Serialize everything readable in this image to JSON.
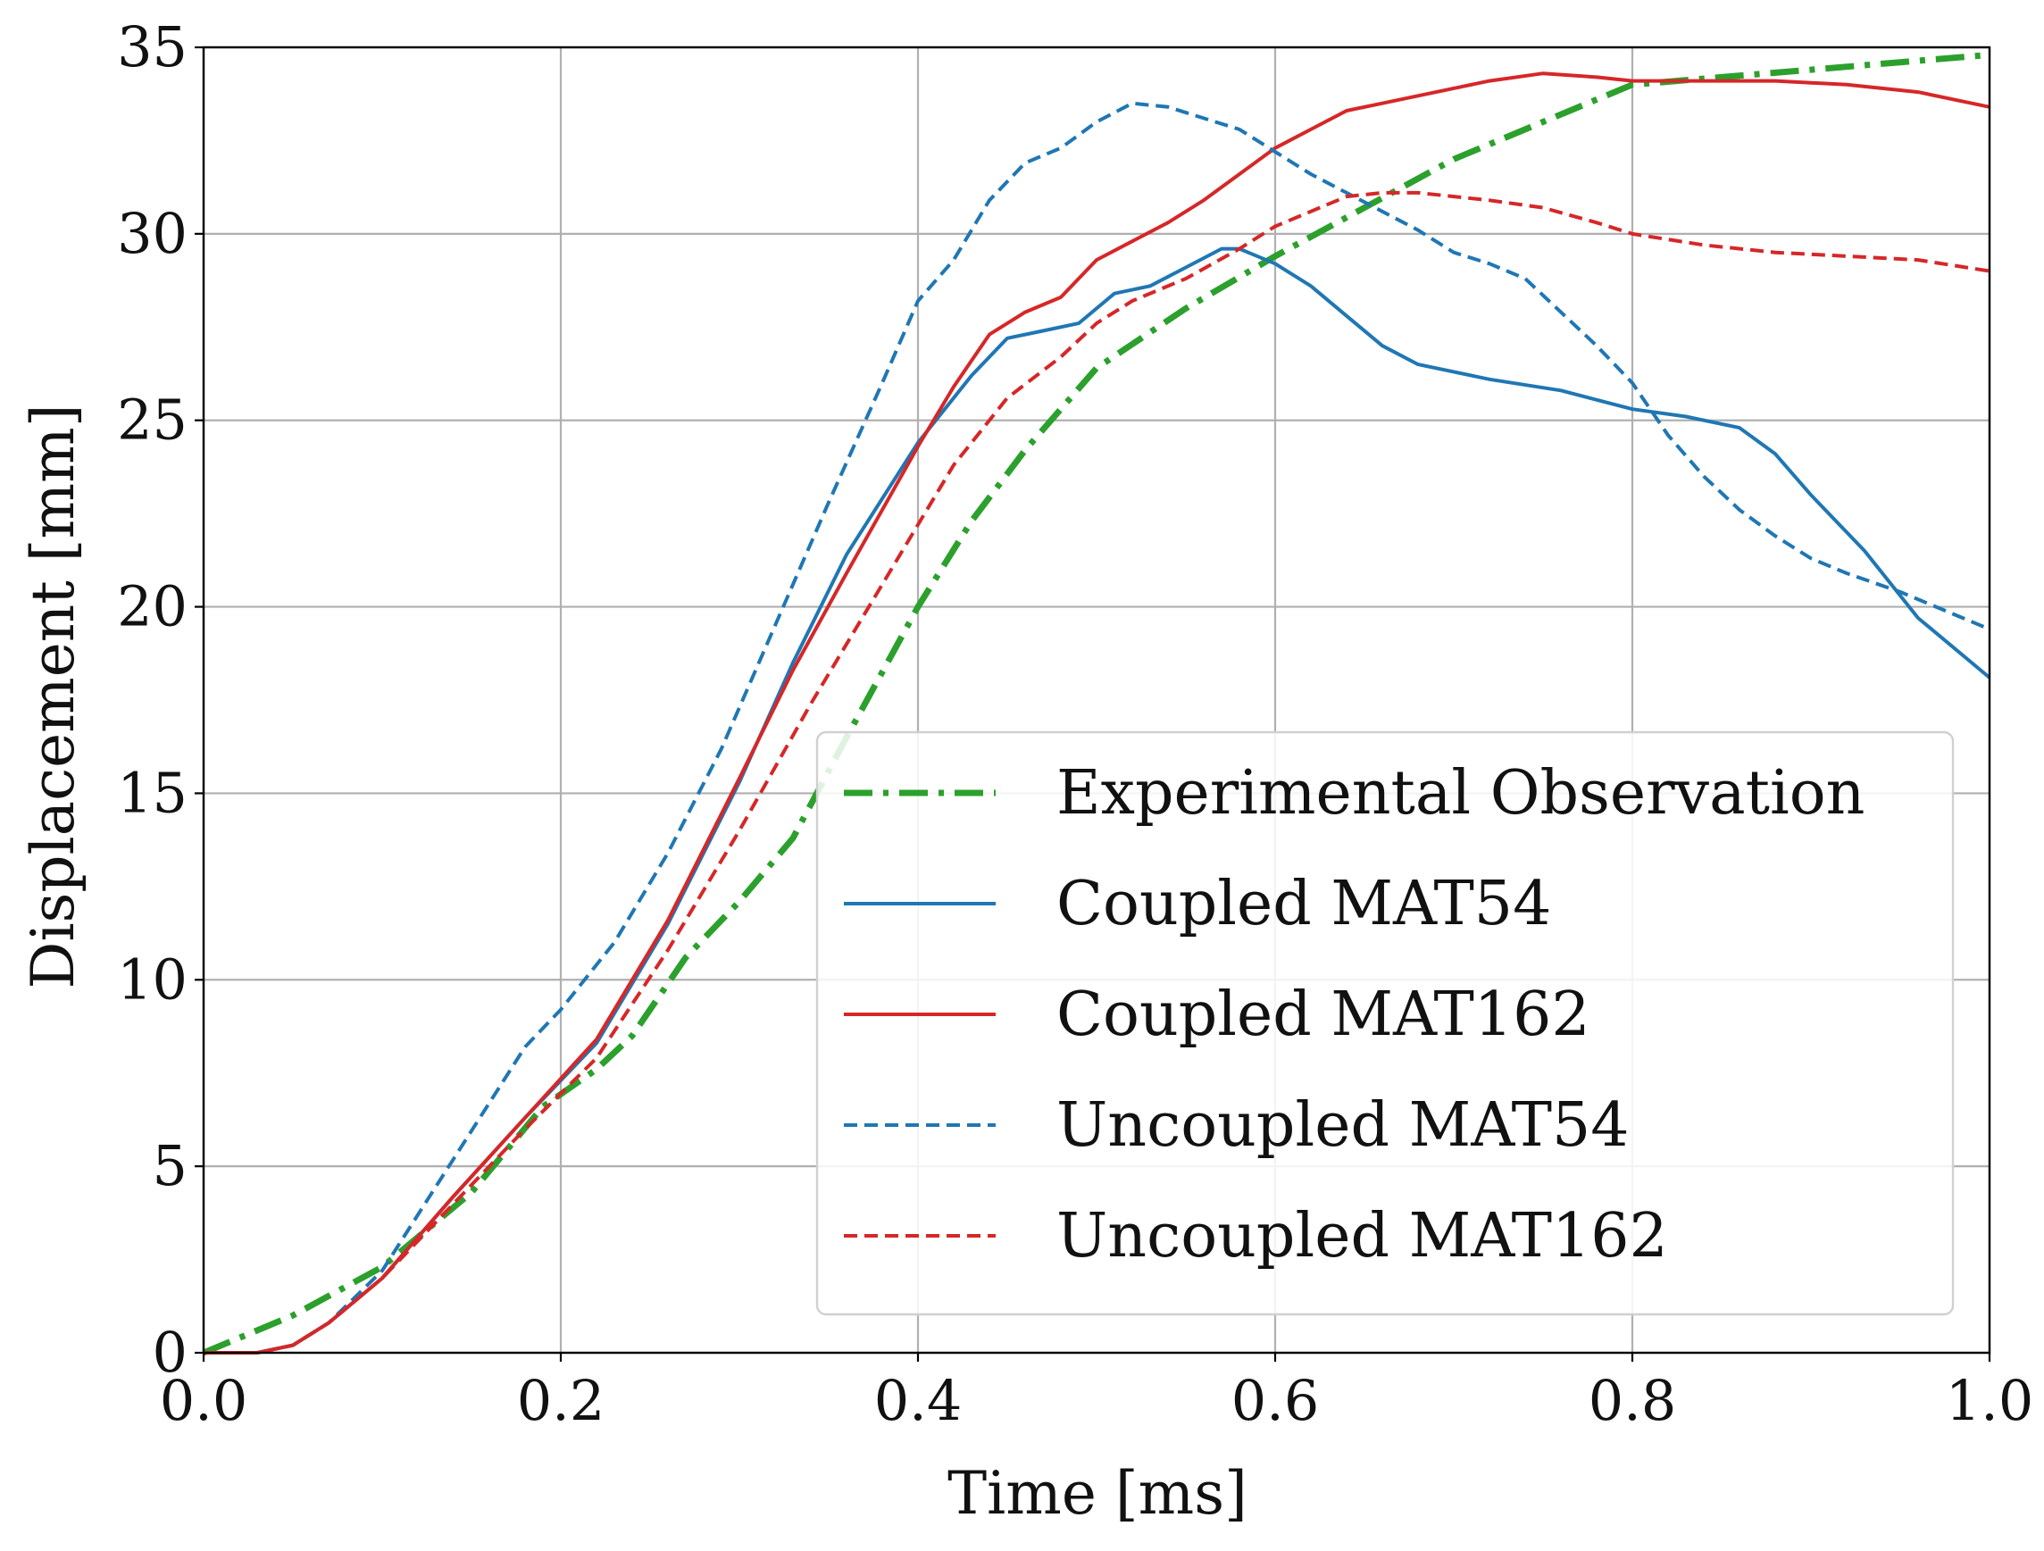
{
  "chart_data": {
    "type": "line",
    "title": "",
    "xlabel": "Time [ms]",
    "ylabel": "Displacement [mm]",
    "xlim": [
      0.0,
      1.0
    ],
    "ylim": [
      0,
      35
    ],
    "grid": true,
    "legend_position": "lower-right",
    "xticks": [
      0.0,
      0.2,
      0.4,
      0.6,
      0.8,
      1.0
    ],
    "xtick_labels": [
      "0.0",
      "0.2",
      "0.4",
      "0.6",
      "0.8",
      "1.0"
    ],
    "yticks": [
      0,
      5,
      10,
      15,
      20,
      25,
      30,
      35
    ],
    "ytick_labels": [
      "0",
      "5",
      "10",
      "15",
      "20",
      "25",
      "30",
      "35"
    ],
    "series": [
      {
        "name": "Experimental Observation",
        "color": "#2ca02c",
        "style": "dashdot",
        "x": [
          0.0,
          0.05,
          0.1,
          0.15,
          0.19,
          0.22,
          0.24,
          0.27,
          0.3,
          0.33,
          0.36,
          0.4,
          0.43,
          0.46,
          0.5,
          0.55,
          0.6,
          0.65,
          0.7,
          0.75,
          0.8,
          0.85,
          0.9,
          0.95,
          1.0
        ],
        "values": [
          0.0,
          1.0,
          2.3,
          4.3,
          6.6,
          7.6,
          8.5,
          10.6,
          12.1,
          13.8,
          16.5,
          20.0,
          22.3,
          24.2,
          26.4,
          28.0,
          29.4,
          30.7,
          32.0,
          33.0,
          34.0,
          34.2,
          34.4,
          34.6,
          34.8
        ]
      },
      {
        "name": "Coupled MAT54",
        "color": "#1f77b4",
        "style": "solid",
        "x": [
          0.0,
          0.03,
          0.05,
          0.07,
          0.1,
          0.14,
          0.18,
          0.22,
          0.26,
          0.3,
          0.33,
          0.36,
          0.4,
          0.43,
          0.45,
          0.47,
          0.49,
          0.51,
          0.53,
          0.55,
          0.57,
          0.58,
          0.6,
          0.62,
          0.64,
          0.66,
          0.68,
          0.72,
          0.76,
          0.8,
          0.83,
          0.86,
          0.88,
          0.9,
          0.93,
          0.96,
          1.0
        ],
        "values": [
          0.0,
          0.0,
          0.2,
          0.8,
          2.0,
          4.2,
          6.3,
          8.3,
          11.5,
          15.3,
          18.5,
          21.4,
          24.4,
          26.2,
          27.2,
          27.4,
          27.6,
          28.4,
          28.6,
          29.1,
          29.6,
          29.6,
          29.2,
          28.6,
          27.8,
          27.0,
          26.5,
          26.1,
          25.8,
          25.3,
          25.1,
          24.8,
          24.1,
          23.0,
          21.5,
          19.7,
          18.1
        ]
      },
      {
        "name": "Coupled MAT162",
        "color": "#d62728",
        "style": "solid",
        "x": [
          0.0,
          0.03,
          0.05,
          0.07,
          0.1,
          0.14,
          0.18,
          0.22,
          0.26,
          0.3,
          0.33,
          0.36,
          0.4,
          0.42,
          0.44,
          0.46,
          0.48,
          0.5,
          0.52,
          0.54,
          0.56,
          0.58,
          0.6,
          0.62,
          0.64,
          0.66,
          0.68,
          0.7,
          0.72,
          0.75,
          0.78,
          0.8,
          0.82,
          0.85,
          0.88,
          0.92,
          0.96,
          1.0
        ],
        "values": [
          0.0,
          0.0,
          0.2,
          0.8,
          2.0,
          4.2,
          6.3,
          8.4,
          11.6,
          15.4,
          18.3,
          20.9,
          24.3,
          25.9,
          27.3,
          27.9,
          28.3,
          29.3,
          29.8,
          30.3,
          30.9,
          31.6,
          32.3,
          32.8,
          33.3,
          33.5,
          33.7,
          33.9,
          34.1,
          34.3,
          34.2,
          34.1,
          34.1,
          34.1,
          34.1,
          34.0,
          33.8,
          33.4
        ]
      },
      {
        "name": "Uncoupled MAT54",
        "color": "#1f77b4",
        "style": "dashed",
        "x": [
          0.0,
          0.03,
          0.05,
          0.07,
          0.1,
          0.14,
          0.18,
          0.2,
          0.23,
          0.26,
          0.29,
          0.32,
          0.35,
          0.38,
          0.4,
          0.42,
          0.44,
          0.46,
          0.48,
          0.5,
          0.52,
          0.54,
          0.56,
          0.58,
          0.6,
          0.62,
          0.64,
          0.66,
          0.68,
          0.7,
          0.72,
          0.74,
          0.76,
          0.78,
          0.8,
          0.82,
          0.84,
          0.86,
          0.88,
          0.9,
          0.92,
          0.95,
          1.0
        ],
        "values": [
          0.0,
          0.0,
          0.2,
          0.8,
          2.2,
          5.2,
          8.2,
          9.2,
          11.0,
          13.4,
          16.2,
          19.5,
          22.8,
          26.0,
          28.2,
          29.3,
          30.9,
          31.9,
          32.3,
          33.0,
          33.5,
          33.4,
          33.1,
          32.8,
          32.2,
          31.6,
          31.1,
          30.6,
          30.1,
          29.5,
          29.2,
          28.8,
          27.9,
          27.0,
          26.0,
          24.6,
          23.5,
          22.6,
          21.9,
          21.3,
          20.9,
          20.4,
          19.4
        ]
      },
      {
        "name": "Uncoupled MAT162",
        "color": "#d62728",
        "style": "dashed",
        "x": [
          0.0,
          0.03,
          0.05,
          0.07,
          0.1,
          0.14,
          0.18,
          0.22,
          0.26,
          0.3,
          0.34,
          0.38,
          0.42,
          0.45,
          0.48,
          0.5,
          0.52,
          0.55,
          0.58,
          0.6,
          0.62,
          0.64,
          0.66,
          0.68,
          0.7,
          0.72,
          0.75,
          0.78,
          0.8,
          0.84,
          0.88,
          0.92,
          0.96,
          1.0
        ],
        "values": [
          0.0,
          0.0,
          0.2,
          0.8,
          2.0,
          4.0,
          6.0,
          7.9,
          10.8,
          14.0,
          17.4,
          20.6,
          23.8,
          25.6,
          26.7,
          27.6,
          28.2,
          28.8,
          29.6,
          30.2,
          30.6,
          31.0,
          31.1,
          31.1,
          31.0,
          30.9,
          30.7,
          30.3,
          30.0,
          29.7,
          29.5,
          29.4,
          29.3,
          29.0
        ]
      }
    ]
  }
}
